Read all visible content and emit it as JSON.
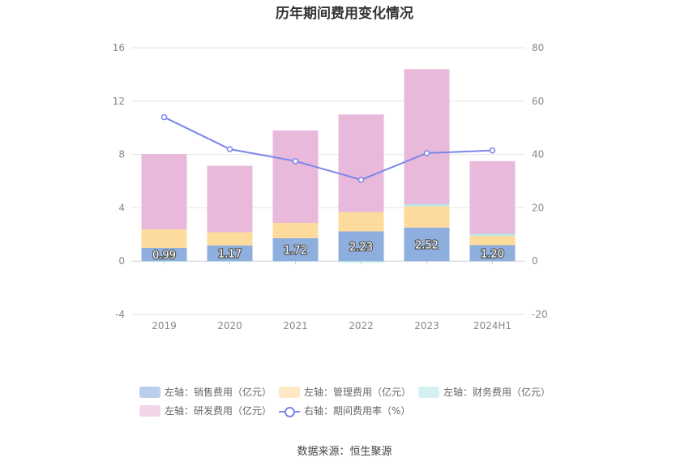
{
  "title": "历年期间费用变化情况",
  "source": "数据来源：恒生聚源",
  "chart_data": {
    "type": "bar",
    "stacked": true,
    "categories": [
      "2019",
      "2020",
      "2021",
      "2022",
      "2023",
      "2024H1"
    ],
    "left_axis": {
      "min": -4,
      "max": 16,
      "ticks": [
        "-4",
        "0",
        "4",
        "8",
        "12",
        "16"
      ]
    },
    "right_axis": {
      "min": -20,
      "max": 80,
      "ticks": [
        "-20",
        "0",
        "20",
        "40",
        "60",
        "80"
      ]
    },
    "series": [
      {
        "name": "左轴：销售费用（亿元）",
        "axis": "left",
        "color": "#8eaedd",
        "values": [
          0.99,
          1.17,
          1.72,
          2.23,
          2.52,
          1.2
        ],
        "labels": [
          "0.99",
          "1.17",
          "1.72",
          "2.23",
          "2.52",
          "1.20"
        ]
      },
      {
        "name": "左轴：管理费用（亿元）",
        "axis": "left",
        "color": "#fddb9c",
        "values": [
          1.4,
          1.0,
          1.15,
          1.45,
          1.6,
          0.7
        ]
      },
      {
        "name": "左轴：财务费用（亿元）",
        "axis": "left",
        "color": "#b7e8ea",
        "values": [
          -0.05,
          -0.05,
          -0.05,
          -0.1,
          0.15,
          0.15
        ]
      },
      {
        "name": "左轴：研发费用（亿元）",
        "axis": "left",
        "color": "#e8b9db",
        "values": [
          5.65,
          4.98,
          6.93,
          7.32,
          10.13,
          5.45
        ]
      },
      {
        "name": "右轴：期间费用率（%）",
        "axis": "right",
        "type": "line",
        "color": "#7b86e8",
        "values": [
          54.0,
          42.0,
          37.5,
          30.5,
          40.5,
          41.5
        ]
      }
    ]
  }
}
